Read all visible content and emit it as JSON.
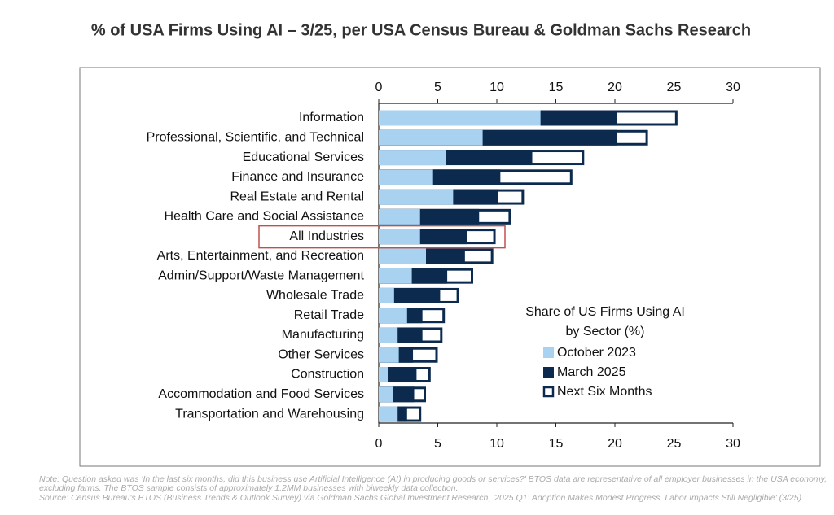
{
  "chart_data": {
    "type": "overlap-bar",
    "title": "% of USA Firms Using AI – 3/25, per USA Census Bureau & Goldman Sachs Research",
    "categories": [
      "Information",
      "Professional, Scientific, and Technical",
      "Educational Services",
      "Finance and Insurance",
      "Real Estate and Rental",
      "Health Care and Social Assistance",
      "All Industries",
      "Arts, Entertainment, and Recreation",
      "Admin/Support/Waste Management",
      "Wholesale Trade",
      "Retail Trade",
      "Manufacturing",
      "Other Services",
      "Construction",
      "Accommodation and Food Services",
      "Transportation and Warehousing"
    ],
    "series": [
      {
        "name": "October 2023",
        "color": "#a9d1f0",
        "values": [
          13.7,
          8.8,
          5.7,
          4.6,
          6.3,
          3.5,
          3.5,
          4.0,
          2.8,
          1.3,
          2.4,
          1.6,
          1.7,
          0.8,
          1.2,
          1.6
        ]
      },
      {
        "name": "March 2025",
        "color": "#0b2a4e",
        "values": [
          20.2,
          20.2,
          13.0,
          10.3,
          10.1,
          8.5,
          7.5,
          7.3,
          5.8,
          5.2,
          3.7,
          3.7,
          2.9,
          3.2,
          3.0,
          2.4
        ]
      },
      {
        "name": "Next Six Months",
        "color": "#ffffff",
        "values": [
          25.3,
          22.8,
          17.4,
          16.4,
          12.3,
          11.2,
          9.9,
          9.7,
          8.0,
          6.8,
          5.6,
          5.4,
          5.0,
          4.4,
          4.0,
          3.6
        ]
      }
    ],
    "xlim": [
      0,
      30
    ],
    "xticks": [
      0,
      5,
      10,
      15,
      20,
      25,
      30
    ],
    "legend_title": [
      "Share of US Firms Using AI",
      "by Sector (%)"
    ],
    "notes": [
      "Note: Question asked was 'In the last six months, did this business use Artificial Intelligence (AI) in producing goods or services?' BTOS data are representative of all employer businesses in the USA economy, excluding farms. The BTOS sample consists of approximately 1.2MM businesses with biweekly data collection.",
      "Source: Census Bureau's BTOS (Business Trends & Outlook Survey) via Goldman Sachs Global Investment Research, '2025 Q1: Adoption Makes Modest Progress, Labor Impacts Still Negligible' (3/25)"
    ]
  }
}
